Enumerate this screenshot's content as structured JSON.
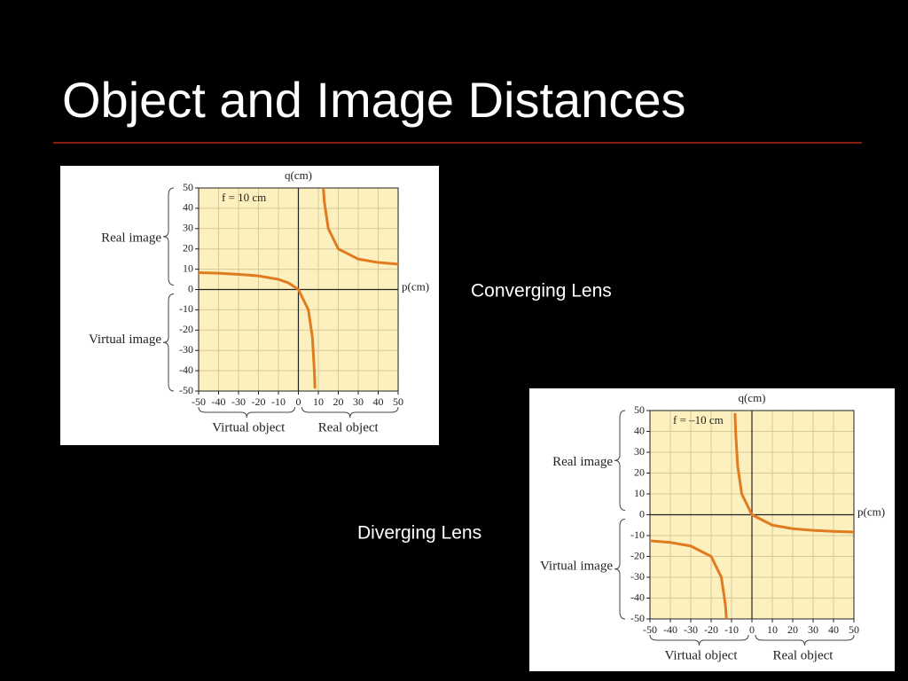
{
  "title": "Object and Image Distances",
  "captions": [
    "Converging Lens",
    "Diverging Lens"
  ],
  "chart_data": [
    {
      "type": "line",
      "xlabel": "p(cm)",
      "ylabel": "q(cm)",
      "annotation": "f = 10 cm",
      "y_groups": [
        "Real image",
        "Virtual image"
      ],
      "x_groups": [
        "Virtual object",
        "Real object"
      ],
      "x": [
        -50,
        -40,
        -30,
        -20,
        -10,
        -5,
        0,
        5,
        7,
        8,
        8.3,
        10,
        12.5,
        13,
        15,
        20,
        30,
        40,
        50
      ],
      "series": [
        {
          "color": "#e07b1f",
          "values": [
            8.3,
            8,
            7.5,
            6.7,
            5,
            3.3,
            0,
            -10,
            -23.3,
            -40,
            -48.8,
            null,
            50,
            43.3,
            30,
            20,
            15,
            13.3,
            12.5
          ]
        }
      ],
      "xlim": [
        -50,
        50
      ],
      "ylim": [
        -50,
        50
      ],
      "xticks": [
        -50,
        -40,
        -30,
        -20,
        -10,
        0,
        10,
        20,
        30,
        40,
        50
      ],
      "yticks": [
        -50,
        -40,
        -30,
        -20,
        -10,
        0,
        10,
        20,
        30,
        40,
        50
      ],
      "grid": true
    },
    {
      "type": "line",
      "xlabel": "p(cm)",
      "ylabel": "q(cm)",
      "annotation": "f = –10 cm",
      "y_groups": [
        "Real image",
        "Virtual image"
      ],
      "x_groups": [
        "Virtual object",
        "Real object"
      ],
      "x": [
        -50,
        -40,
        -30,
        -20,
        -15,
        -13,
        -12.5,
        -10,
        -8.3,
        -8,
        -7,
        -5,
        0,
        10,
        20,
        30,
        40,
        50
      ],
      "series": [
        {
          "color": "#e07b1f",
          "values": [
            -12.5,
            -13.3,
            -15,
            -20,
            -30,
            -43.3,
            -50,
            null,
            48.8,
            40,
            23.3,
            10,
            0,
            -5,
            -6.7,
            -7.5,
            -8,
            -8.3
          ]
        }
      ],
      "xlim": [
        -50,
        50
      ],
      "ylim": [
        -50,
        50
      ],
      "xticks": [
        -50,
        -40,
        -30,
        -20,
        -10,
        0,
        10,
        20,
        30,
        40,
        50
      ],
      "yticks": [
        -50,
        -40,
        -30,
        -20,
        -10,
        0,
        10,
        20,
        30,
        40,
        50
      ],
      "grid": true
    }
  ]
}
